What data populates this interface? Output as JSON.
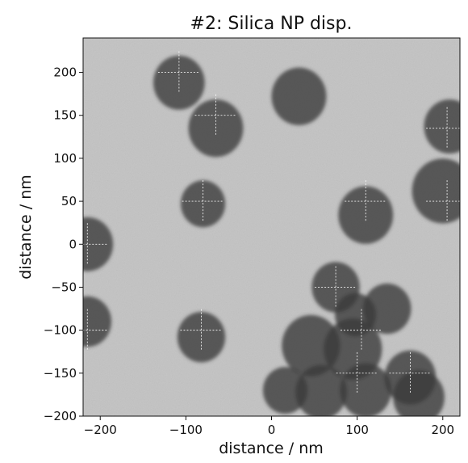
{
  "chart_data": {
    "type": "heatmap",
    "title": "#2: Silica NP disp.",
    "xlabel": "distance / nm",
    "ylabel": "distance / nm",
    "xlim": [
      -220,
      220
    ],
    "ylim": [
      -200,
      240
    ],
    "x_ticks": [
      -200,
      -100,
      0,
      100,
      200
    ],
    "y_ticks": [
      -200,
      -150,
      -100,
      -50,
      0,
      50,
      100,
      150,
      200
    ],
    "grid": "dashed white lines at particle centers",
    "colormap": "grayscale",
    "particles": [
      {
        "x": -108,
        "y": 188,
        "r": 30
      },
      {
        "x": -65,
        "y": 135,
        "r": 32
      },
      {
        "x": -80,
        "y": 47,
        "r": 26
      },
      {
        "x": 32,
        "y": 172,
        "r": 32
      },
      {
        "x": 208,
        "y": 137,
        "r": 30
      },
      {
        "x": 200,
        "y": 62,
        "r": 36
      },
      {
        "x": 110,
        "y": 34,
        "r": 32
      },
      {
        "x": -215,
        "y": 0,
        "r": 30
      },
      {
        "x": -215,
        "y": -90,
        "r": 28
      },
      {
        "x": -82,
        "y": -108,
        "r": 28
      },
      {
        "x": 75,
        "y": -50,
        "r": 28
      },
      {
        "x": 135,
        "y": -75,
        "r": 28
      },
      {
        "x": 98,
        "y": -82,
        "r": 24
      },
      {
        "x": 46,
        "y": -118,
        "r": 34
      },
      {
        "x": 95,
        "y": -122,
        "r": 34
      },
      {
        "x": 162,
        "y": -155,
        "r": 30
      },
      {
        "x": 172,
        "y": -178,
        "r": 30
      },
      {
        "x": 16,
        "y": -170,
        "r": 26
      },
      {
        "x": 58,
        "y": -172,
        "r": 30
      },
      {
        "x": 110,
        "y": -170,
        "r": 30
      }
    ],
    "crosshairs": [
      {
        "x": -108,
        "y": 200
      },
      {
        "x": -65,
        "y": 150
      },
      {
        "x": -80,
        "y": 50
      },
      {
        "x": 110,
        "y": 50
      },
      {
        "x": 205,
        "y": 50
      },
      {
        "x": 205,
        "y": 135
      },
      {
        "x": -215,
        "y": 0
      },
      {
        "x": -215,
        "y": -100
      },
      {
        "x": -82,
        "y": -100
      },
      {
        "x": 75,
        "y": -50
      },
      {
        "x": 105,
        "y": -100
      },
      {
        "x": 162,
        "y": -150
      },
      {
        "x": 100,
        "y": -150
      }
    ]
  }
}
